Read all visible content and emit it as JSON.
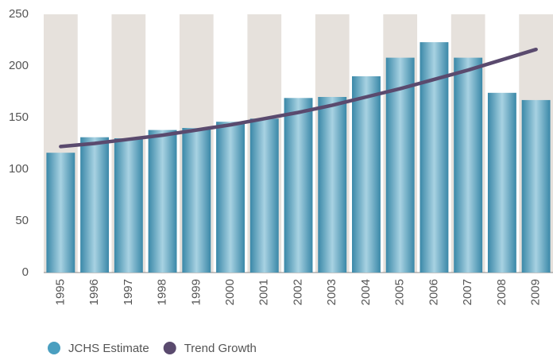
{
  "chart_data": {
    "type": "bar",
    "categories": [
      "1995",
      "1996",
      "1997",
      "1998",
      "1999",
      "2000",
      "2001",
      "2002",
      "2003",
      "2004",
      "2005",
      "2006",
      "2007",
      "2008",
      "2009"
    ],
    "series": [
      {
        "name": "JCHS Estimate",
        "type": "bar",
        "color": "#4a9fc0",
        "values": [
          116,
          131,
          130,
          138,
          140,
          146,
          149,
          169,
          170,
          190,
          208,
          223,
          208,
          174,
          167
        ]
      },
      {
        "name": "Trend Growth",
        "type": "line",
        "color": "#5a4a6e",
        "values": [
          122,
          125,
          129,
          133,
          138,
          143,
          149,
          155,
          162,
          170,
          178,
          187,
          196,
          206,
          216
        ]
      }
    ],
    "ylim": [
      0,
      250
    ],
    "yticks": [
      0,
      50,
      100,
      150,
      200,
      250
    ],
    "grid": true
  }
}
